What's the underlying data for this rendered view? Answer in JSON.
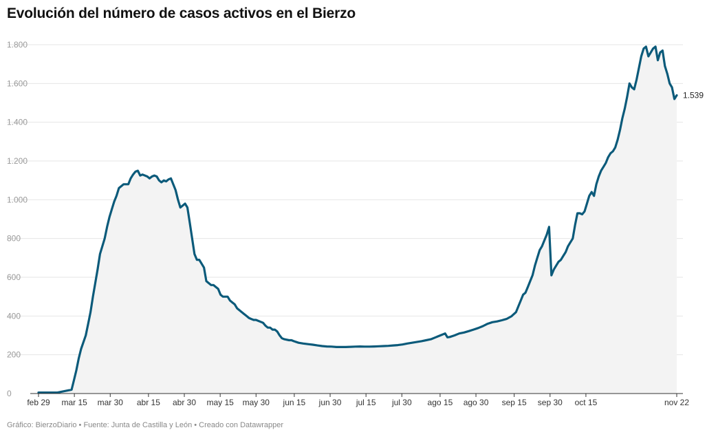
{
  "title": "Evolución del número de casos activos en el Bierzo",
  "footer": "Gráfico: BierzoDiario • Fuente: Junta de Castilla y León • Creado con Datawrapper",
  "colors": {
    "line": "#0b5a7a",
    "area": "#f3f3f3",
    "grid": "#e6e6e6",
    "baseline": "#333333"
  },
  "chart_data": {
    "type": "area",
    "title": "Evolución del número de casos activos en el Bierzo",
    "xlabel": "",
    "ylabel": "",
    "ylim": [
      0,
      1800
    ],
    "xlim": [
      0,
      267
    ],
    "grid": true,
    "y_ticks": [
      0,
      200,
      400,
      600,
      800,
      1000,
      1200,
      1400,
      1600,
      1800
    ],
    "y_tick_labels": [
      "0",
      "200",
      "400",
      "600",
      "800",
      "1.000",
      "1.200",
      "1.400",
      "1.600",
      "1.800"
    ],
    "x_ticks": [
      {
        "day": 0,
        "label": "feb 29"
      },
      {
        "day": 15,
        "label": "mar 15"
      },
      {
        "day": 30,
        "label": "mar 30"
      },
      {
        "day": 46,
        "label": "abr 15"
      },
      {
        "day": 61,
        "label": "abr 30"
      },
      {
        "day": 76,
        "label": "may 15"
      },
      {
        "day": 91,
        "label": "may 30"
      },
      {
        "day": 107,
        "label": "jun 15"
      },
      {
        "day": 122,
        "label": "jun 30"
      },
      {
        "day": 137,
        "label": "jul 15"
      },
      {
        "day": 152,
        "label": "jul 30"
      },
      {
        "day": 168,
        "label": "ago 15"
      },
      {
        "day": 183,
        "label": "ago 30"
      },
      {
        "day": 199,
        "label": "sep 15"
      },
      {
        "day": 214,
        "label": "sep 30"
      },
      {
        "day": 229,
        "label": "oct 15"
      },
      {
        "day": 267,
        "label": "nov 22"
      }
    ],
    "end_label": "1.539",
    "series": [
      {
        "points": [
          [
            0,
            5
          ],
          [
            8,
            5
          ],
          [
            10,
            10
          ],
          [
            12,
            15
          ],
          [
            14,
            20
          ],
          [
            15,
            70
          ],
          [
            16,
            120
          ],
          [
            17,
            180
          ],
          [
            18,
            230
          ],
          [
            20,
            300
          ],
          [
            21,
            360
          ],
          [
            22,
            420
          ],
          [
            23,
            500
          ],
          [
            24,
            570
          ],
          [
            25,
            640
          ],
          [
            26,
            720
          ],
          [
            27,
            760
          ],
          [
            28,
            800
          ],
          [
            29,
            860
          ],
          [
            30,
            910
          ],
          [
            31,
            950
          ],
          [
            32,
            990
          ],
          [
            33,
            1020
          ],
          [
            34,
            1060
          ],
          [
            35,
            1070
          ],
          [
            36,
            1080
          ],
          [
            38,
            1080
          ],
          [
            39,
            1110
          ],
          [
            40,
            1130
          ],
          [
            41,
            1145
          ],
          [
            42,
            1150
          ],
          [
            43,
            1125
          ],
          [
            44,
            1130
          ],
          [
            46,
            1120
          ],
          [
            47,
            1110
          ],
          [
            48,
            1120
          ],
          [
            49,
            1125
          ],
          [
            50,
            1120
          ],
          [
            51,
            1100
          ],
          [
            52,
            1090
          ],
          [
            53,
            1100
          ],
          [
            54,
            1095
          ],
          [
            55,
            1105
          ],
          [
            56,
            1110
          ],
          [
            57,
            1080
          ],
          [
            58,
            1050
          ],
          [
            59,
            1000
          ],
          [
            60,
            960
          ],
          [
            61,
            970
          ],
          [
            62,
            980
          ],
          [
            63,
            960
          ],
          [
            64,
            880
          ],
          [
            65,
            800
          ],
          [
            66,
            720
          ],
          [
            67,
            690
          ],
          [
            68,
            690
          ],
          [
            69,
            670
          ],
          [
            70,
            650
          ],
          [
            71,
            580
          ],
          [
            72,
            570
          ],
          [
            73,
            560
          ],
          [
            74,
            560
          ],
          [
            75,
            550
          ],
          [
            76,
            540
          ],
          [
            77,
            510
          ],
          [
            78,
            500
          ],
          [
            80,
            500
          ],
          [
            81,
            480
          ],
          [
            82,
            470
          ],
          [
            83,
            460
          ],
          [
            84,
            440
          ],
          [
            85,
            430
          ],
          [
            86,
            420
          ],
          [
            87,
            410
          ],
          [
            88,
            400
          ],
          [
            89,
            390
          ],
          [
            90,
            385
          ],
          [
            91,
            380
          ],
          [
            92,
            380
          ],
          [
            93,
            375
          ],
          [
            94,
            370
          ],
          [
            95,
            365
          ],
          [
            96,
            350
          ],
          [
            97,
            340
          ],
          [
            98,
            340
          ],
          [
            99,
            330
          ],
          [
            100,
            330
          ],
          [
            101,
            320
          ],
          [
            102,
            300
          ],
          [
            103,
            285
          ],
          [
            104,
            280
          ],
          [
            106,
            275
          ],
          [
            107,
            275
          ],
          [
            108,
            270
          ],
          [
            110,
            262
          ],
          [
            112,
            258
          ],
          [
            114,
            255
          ],
          [
            116,
            252
          ],
          [
            118,
            248
          ],
          [
            120,
            245
          ],
          [
            122,
            243
          ],
          [
            124,
            242
          ],
          [
            126,
            240
          ],
          [
            128,
            240
          ],
          [
            130,
            240
          ],
          [
            132,
            241
          ],
          [
            134,
            242
          ],
          [
            136,
            243
          ],
          [
            138,
            242
          ],
          [
            140,
            242
          ],
          [
            142,
            243
          ],
          [
            144,
            244
          ],
          [
            146,
            245
          ],
          [
            148,
            246
          ],
          [
            150,
            248
          ],
          [
            152,
            250
          ],
          [
            154,
            253
          ],
          [
            156,
            258
          ],
          [
            158,
            262
          ],
          [
            160,
            266
          ],
          [
            162,
            270
          ],
          [
            164,
            275
          ],
          [
            166,
            280
          ],
          [
            168,
            290
          ],
          [
            170,
            300
          ],
          [
            172,
            310
          ],
          [
            173,
            290
          ],
          [
            174,
            292
          ],
          [
            176,
            300
          ],
          [
            178,
            310
          ],
          [
            180,
            315
          ],
          [
            182,
            322
          ],
          [
            184,
            330
          ],
          [
            186,
            338
          ],
          [
            188,
            348
          ],
          [
            190,
            360
          ],
          [
            192,
            368
          ],
          [
            194,
            372
          ],
          [
            196,
            378
          ],
          [
            198,
            385
          ],
          [
            200,
            398
          ],
          [
            202,
            420
          ],
          [
            203,
            450
          ],
          [
            204,
            480
          ],
          [
            205,
            510
          ],
          [
            206,
            520
          ],
          [
            207,
            550
          ],
          [
            208,
            580
          ],
          [
            209,
            610
          ],
          [
            210,
            660
          ],
          [
            211,
            700
          ],
          [
            212,
            740
          ],
          [
            213,
            760
          ],
          [
            214,
            790
          ],
          [
            215,
            820
          ],
          [
            216,
            860
          ],
          [
            217,
            610
          ],
          [
            218,
            640
          ],
          [
            219,
            660
          ],
          [
            220,
            680
          ],
          [
            221,
            690
          ],
          [
            222,
            710
          ],
          [
            223,
            730
          ],
          [
            224,
            760
          ],
          [
            225,
            780
          ],
          [
            226,
            800
          ],
          [
            227,
            870
          ],
          [
            228,
            930
          ],
          [
            229,
            930
          ],
          [
            230,
            925
          ],
          [
            231,
            940
          ],
          [
            232,
            980
          ],
          [
            233,
            1020
          ],
          [
            234,
            1040
          ],
          [
            235,
            1020
          ],
          [
            236,
            1080
          ],
          [
            237,
            1120
          ],
          [
            238,
            1150
          ],
          [
            239,
            1170
          ],
          [
            240,
            1190
          ],
          [
            241,
            1220
          ],
          [
            242,
            1240
          ],
          [
            243,
            1250
          ],
          [
            244,
            1270
          ],
          [
            245,
            1310
          ],
          [
            246,
            1360
          ],
          [
            247,
            1420
          ],
          [
            248,
            1470
          ],
          [
            249,
            1530
          ],
          [
            250,
            1600
          ],
          [
            251,
            1580
          ],
          [
            252,
            1570
          ],
          [
            253,
            1620
          ],
          [
            254,
            1680
          ],
          [
            255,
            1740
          ],
          [
            256,
            1780
          ],
          [
            257,
            1790
          ],
          [
            258,
            1740
          ],
          [
            259,
            1760
          ],
          [
            260,
            1780
          ],
          [
            261,
            1790
          ],
          [
            262,
            1720
          ],
          [
            263,
            1760
          ],
          [
            264,
            1770
          ],
          [
            265,
            1690
          ],
          [
            266,
            1650
          ],
          [
            267,
            1600
          ],
          [
            268,
            1580
          ],
          [
            269,
            1520
          ],
          [
            270,
            1539
          ]
        ]
      }
    ]
  }
}
